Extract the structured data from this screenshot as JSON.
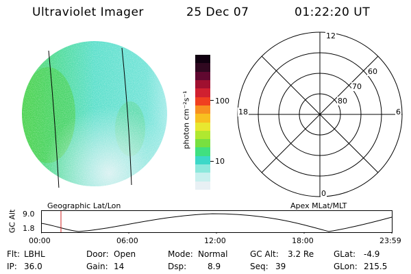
{
  "header": {
    "instrument": "Ultraviolet Imager",
    "date": "25 Dec 07",
    "time": "01:22:20 UT"
  },
  "colorbar": {
    "unit_label": "photon cm⁻²s⁻¹",
    "ticks": [
      "100",
      "10"
    ],
    "colors": [
      "#e8f0f4",
      "#c8f0ee",
      "#8ce8dc",
      "#3cd8c8",
      "#40e080",
      "#78e040",
      "#b0e830",
      "#e8e830",
      "#f8c020",
      "#f89020",
      "#f04020",
      "#d02030",
      "#a01030",
      "#600830",
      "#300820",
      "#100010"
    ]
  },
  "imager": {
    "left_label": "Geographic Lat/Lon",
    "right_label": "Apex MLat/MLT"
  },
  "polar_plot": {
    "mlt_labels": [
      "12",
      "18",
      "6",
      "0"
    ],
    "lat_labels": [
      "60",
      "70",
      "80"
    ]
  },
  "altitude_plot": {
    "ylabel": "GC Alt",
    "y_ticks": [
      "9.0",
      "1.8"
    ],
    "x_ticks": [
      "00:00",
      "06:00",
      "12:00",
      "18:00",
      "23:59"
    ],
    "marker_time": "01:22"
  },
  "info": {
    "flt_label": "Flt:",
    "flt_value": "LBHL",
    "ip_label": "IP:",
    "ip_value": "36.0",
    "door_label": "Door:",
    "door_value": "Open",
    "gain_label": "Gain:",
    "gain_value": "14",
    "mode_label": "Mode:",
    "mode_value": "Normal",
    "dsp_label": "Dsp:",
    "dsp_value": "8.9",
    "gcalt_label": "GC Alt:",
    "gcalt_value": "3.2 Re",
    "seq_label": "Seq:",
    "seq_value": "39",
    "glat_label": "GLat:",
    "glat_value": "-4.9",
    "glon_label": "GLon:",
    "glon_value": "215.5"
  }
}
